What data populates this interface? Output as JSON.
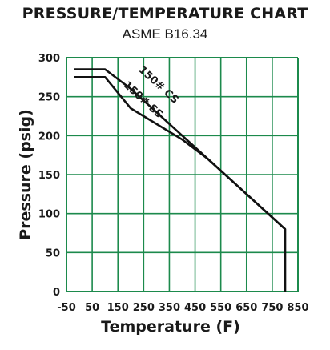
{
  "chart_data": {
    "type": "line",
    "title": "PRESSURE/TEMPERATURE CHART",
    "subtitle": "ASME B16.34",
    "xlabel": "Temperature (F)",
    "ylabel": "Pressure (psig)",
    "xlim": [
      -50,
      850
    ],
    "ylim": [
      0,
      300
    ],
    "x_ticks": [
      -50,
      50,
      150,
      250,
      350,
      450,
      550,
      650,
      750,
      850
    ],
    "x_tick_labels": [
      "-50",
      "50",
      "150",
      "250",
      "350",
      "450",
      "550",
      "650",
      "750",
      "850"
    ],
    "y_ticks": [
      0,
      50,
      100,
      150,
      200,
      250,
      300
    ],
    "y_tick_labels": [
      "0",
      "50",
      "100",
      "150",
      "200",
      "250",
      "300"
    ],
    "grid": true,
    "grid_color": "#1c8a4c",
    "line_color": "#111111",
    "series": [
      {
        "name": "150# CS",
        "points": [
          [
            -20,
            285
          ],
          [
            100,
            285
          ],
          [
            200,
            260
          ],
          [
            300,
            230
          ],
          [
            400,
            200
          ],
          [
            500,
            170
          ],
          [
            600,
            140
          ],
          [
            650,
            125
          ],
          [
            700,
            110
          ],
          [
            750,
            95
          ],
          [
            800,
            80
          ],
          [
            800,
            0
          ]
        ]
      },
      {
        "name": "150# SS",
        "points": [
          [
            -20,
            275
          ],
          [
            100,
            275
          ],
          [
            200,
            235
          ],
          [
            300,
            215
          ],
          [
            400,
            195
          ],
          [
            500,
            170
          ],
          [
            600,
            140
          ],
          [
            650,
            125
          ],
          [
            700,
            110
          ],
          [
            750,
            95
          ],
          [
            800,
            80
          ],
          [
            800,
            0
          ]
        ]
      }
    ]
  }
}
